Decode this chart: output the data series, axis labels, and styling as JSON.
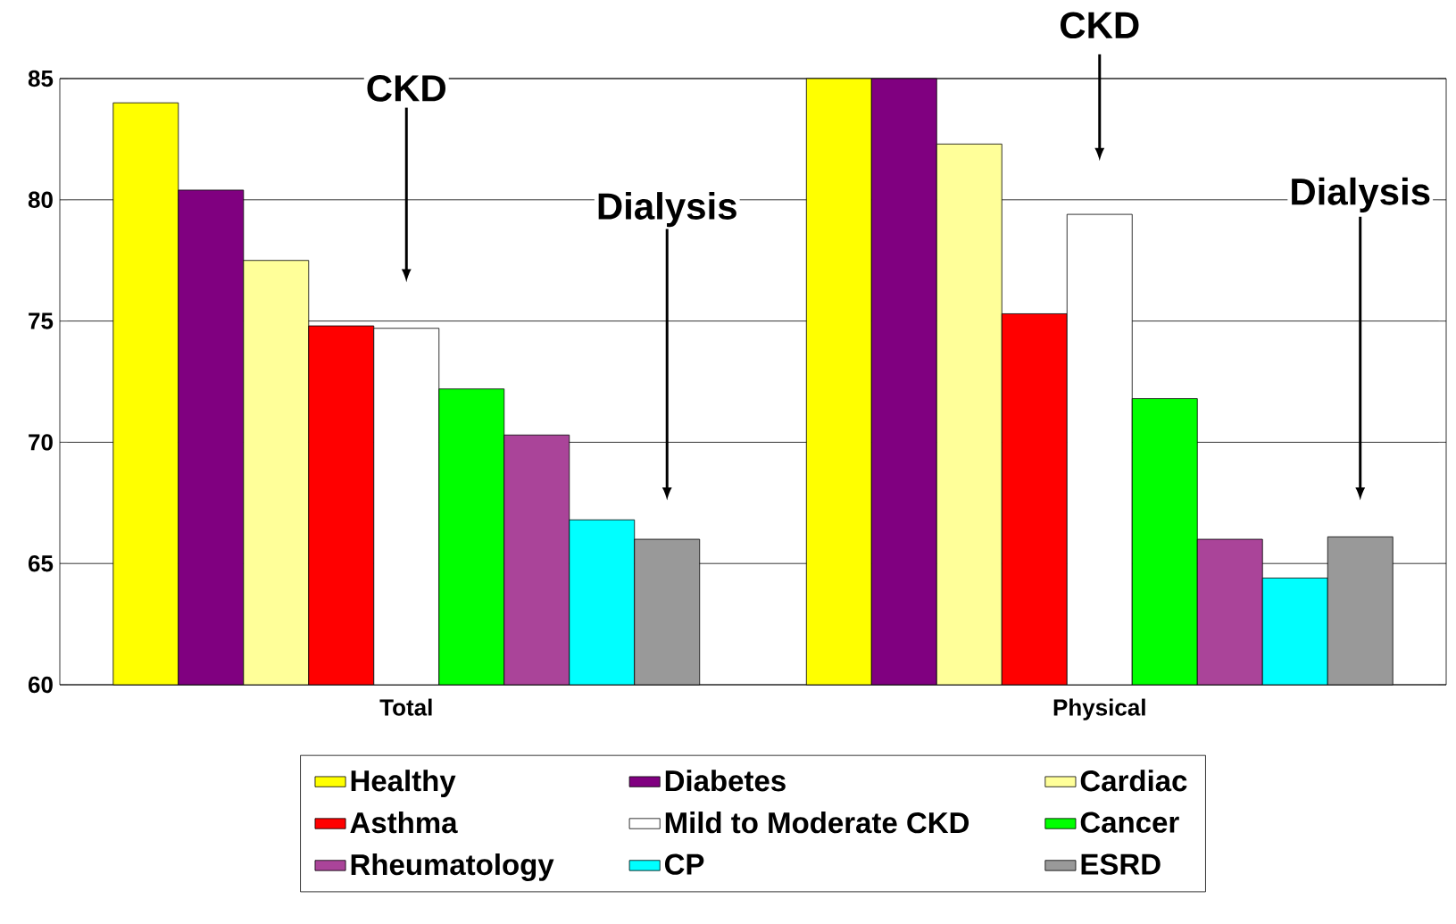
{
  "chart_data": {
    "type": "bar",
    "categories": [
      "Total",
      "Physical"
    ],
    "series": [
      {
        "name": "Healthy",
        "color": "#ffff00",
        "values": [
          84.0,
          85.0
        ]
      },
      {
        "name": "Diabetes",
        "color": "#800080",
        "values": [
          80.4,
          85.0
        ]
      },
      {
        "name": "Cardiac",
        "color": "#ffff99",
        "values": [
          77.5,
          82.3
        ]
      },
      {
        "name": "Asthma",
        "color": "#ff0000",
        "values": [
          74.8,
          75.3
        ]
      },
      {
        "name": "Mild to Moderate CKD",
        "color": "#ffffff",
        "values": [
          74.7,
          79.4
        ]
      },
      {
        "name": "Cancer",
        "color": "#00ff00",
        "values": [
          72.2,
          71.8
        ]
      },
      {
        "name": "Rheumatology",
        "color": "#aa4499",
        "values": [
          70.3,
          66.0
        ]
      },
      {
        "name": "CP",
        "color": "#00ffff",
        "values": [
          66.8,
          64.4
        ]
      },
      {
        "name": "ESRD",
        "color": "#999999",
        "values": [
          66.0,
          66.1
        ]
      }
    ],
    "ylim": [
      60,
      85
    ],
    "yticks": [
      60,
      65,
      70,
      75,
      80,
      85
    ],
    "grid": "y",
    "legend": "bottom",
    "annotations": [
      "CKD",
      "Dialysis",
      "CKD",
      "Dialysis"
    ]
  }
}
